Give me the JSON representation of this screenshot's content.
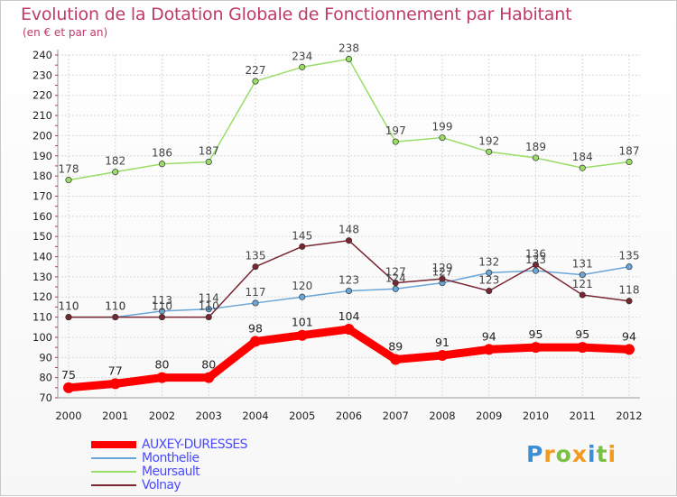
{
  "header": {
    "title": "Evolution de la Dotation Globale de Fonctionnement par Habitant",
    "subtitle": "(en € et par an)"
  },
  "logo": {
    "text": "Proxiti",
    "letters": [
      "P",
      "r",
      "o",
      "x",
      "i",
      "t",
      "i"
    ]
  },
  "colors": {
    "title": "#c0396b",
    "legend_text": "#4a4aff",
    "grid": "#d8d8d8",
    "auxey": "#ff0000",
    "monthelie": "#6aa6d8",
    "meursault": "#99dd66",
    "volnay": "#7a2530",
    "logo": [
      "#3b8fd6",
      "#f29a1e",
      "#7ac143",
      "#f29a1e",
      "#3b8fd6",
      "#7ac143",
      "#f29a1e"
    ]
  },
  "chart_data": {
    "type": "line",
    "title": "Evolution de la Dotation Globale de Fonctionnement par Habitant",
    "subtitle": "(en € et par an)",
    "xlabel": "",
    "ylabel": "",
    "x": [
      2000,
      2001,
      2002,
      2003,
      2004,
      2005,
      2006,
      2007,
      2008,
      2009,
      2010,
      2011,
      2012
    ],
    "ylim": [
      70,
      240
    ],
    "yticks": [
      70,
      80,
      90,
      100,
      110,
      120,
      130,
      140,
      150,
      160,
      170,
      180,
      190,
      200,
      210,
      220,
      230,
      240
    ],
    "grid": true,
    "legend_position": "bottom-left",
    "series": [
      {
        "name": "AUXEY-DURESSES",
        "color": "#ff0000",
        "values": [
          75,
          77,
          80,
          80,
          98,
          101,
          104,
          89,
          91,
          94,
          95,
          95,
          94
        ]
      },
      {
        "name": "Monthelie",
        "color": "#6aa6d8",
        "values": [
          110,
          110,
          113,
          114,
          117,
          120,
          123,
          124,
          127,
          132,
          133,
          131,
          135
        ]
      },
      {
        "name": "Meursault",
        "color": "#99dd66",
        "values": [
          178,
          182,
          186,
          187,
          227,
          234,
          238,
          197,
          199,
          192,
          189,
          184,
          187
        ]
      },
      {
        "name": "Volnay",
        "color": "#7a2530",
        "values": [
          110,
          110,
          110,
          110,
          135,
          145,
          148,
          127,
          129,
          123,
          136,
          121,
          118
        ]
      }
    ]
  }
}
